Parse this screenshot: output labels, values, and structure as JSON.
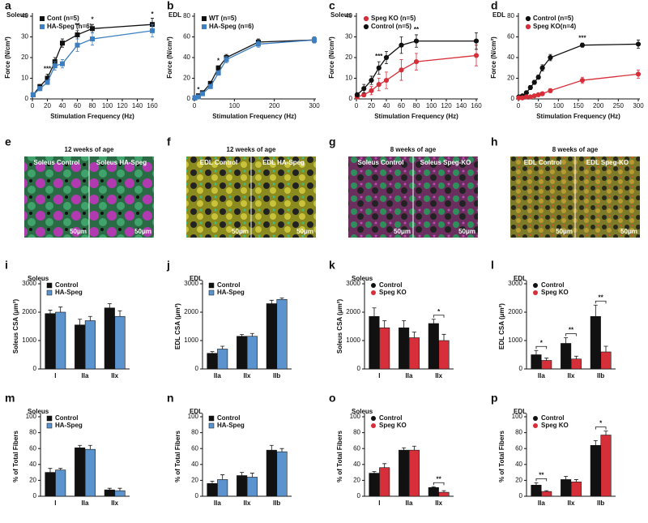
{
  "chart_data": [
    {
      "type": "line",
      "panel": "a",
      "subtitle": "Soleus",
      "x": [
        1,
        10,
        20,
        30,
        40,
        60,
        80,
        160
      ],
      "xlim": [
        0,
        160
      ],
      "xticks": [
        0,
        20,
        40,
        60,
        80,
        100,
        120,
        140,
        160
      ],
      "ylim": [
        0,
        40
      ],
      "yticks": [
        0,
        10,
        20,
        30,
        40
      ],
      "xlabel": "Stimulation Frequency (Hz)",
      "ylabel": "Force (N/cm²)",
      "series": [
        {
          "name": "Cont (n=5)",
          "color": "#111111",
          "marker": "square",
          "values": [
            2,
            6,
            10,
            18,
            27,
            31,
            34,
            36
          ],
          "errors": [
            1,
            1,
            2,
            2,
            2,
            2,
            2,
            3
          ]
        },
        {
          "name": "HA-Speg (n=6)",
          "color": "#3d7fc1",
          "marker": "square",
          "values": [
            2,
            5,
            8,
            16,
            17,
            26,
            29,
            33
          ],
          "errors": [
            1,
            1,
            1,
            2,
            2,
            3,
            3,
            3
          ]
        }
      ],
      "annotations": [
        {
          "text": "***",
          "x": 20
        },
        {
          "text": "**",
          "x": 60
        },
        {
          "text": "*",
          "x": 80
        },
        {
          "text": "*",
          "x": 160
        }
      ]
    },
    {
      "type": "line",
      "panel": "b",
      "subtitle": "EDL",
      "x": [
        1,
        10,
        20,
        40,
        60,
        80,
        160,
        300
      ],
      "xlim": [
        0,
        300
      ],
      "xticks": [
        0,
        100,
        200,
        300
      ],
      "ylim": [
        0,
        80
      ],
      "yticks": [
        0,
        20,
        40,
        60,
        80
      ],
      "xlabel": "Stimulation Frequency (Hz)",
      "ylabel": "Force (N/cm²)",
      "series": [
        {
          "name": "WT (n=5)",
          "color": "#111111",
          "marker": "square",
          "values": [
            1,
            3,
            6,
            15,
            30,
            40,
            55,
            57
          ],
          "errors": [
            1,
            1,
            1,
            2,
            2,
            3,
            3,
            3
          ]
        },
        {
          "name": "HA-Speg (n=6)",
          "color": "#3d7fc1",
          "marker": "square",
          "values": [
            1,
            2,
            5,
            12,
            25,
            38,
            53,
            57
          ],
          "errors": [
            1,
            1,
            1,
            2,
            2,
            3,
            3,
            3
          ]
        }
      ],
      "annotations": [
        {
          "text": "*",
          "x": 10
        },
        {
          "text": "*",
          "x": 60
        }
      ]
    },
    {
      "type": "line",
      "panel": "c",
      "subtitle": "Soleus",
      "x": [
        1,
        10,
        20,
        30,
        40,
        60,
        80,
        160
      ],
      "xlim": [
        0,
        160
      ],
      "xticks": [
        0,
        20,
        40,
        60,
        80,
        100,
        120,
        140,
        160
      ],
      "ylim": [
        0,
        40
      ],
      "yticks": [
        0,
        10,
        20,
        30,
        40
      ],
      "xlabel": "Stimulation Frequency (Hz)",
      "ylabel": "Force (N/cm²)",
      "series": [
        {
          "name": "Speg KO (n=5)",
          "color": "#d62f3a",
          "marker": "circle",
          "values": [
            1,
            2,
            4,
            7,
            9,
            14,
            18,
            21
          ],
          "errors": [
            1,
            1,
            2,
            3,
            4,
            5,
            4,
            5
          ]
        },
        {
          "name": "Control (n=5)",
          "color": "#111111",
          "marker": "circle",
          "values": [
            2,
            5,
            9,
            15,
            20,
            26,
            28,
            28
          ],
          "errors": [
            1,
            2,
            2,
            3,
            3,
            4,
            3,
            4
          ]
        }
      ],
      "annotations": [
        {
          "text": "***",
          "x": 30
        },
        {
          "text": "**",
          "x": 80
        }
      ]
    },
    {
      "type": "line",
      "panel": "d",
      "subtitle": "EDL",
      "x": [
        1,
        10,
        20,
        30,
        40,
        50,
        60,
        80,
        160,
        300
      ],
      "xlim": [
        0,
        300
      ],
      "xticks": [
        0,
        50,
        100,
        150,
        200,
        250,
        300
      ],
      "ylim": [
        0,
        80
      ],
      "yticks": [
        0,
        20,
        40,
        60,
        80
      ],
      "xlabel": "Stimulation Frequency (Hz)",
      "ylabel": "Force (N/cm²)",
      "series": [
        {
          "name": "Control (n=5)",
          "color": "#111111",
          "marker": "circle",
          "values": [
            2,
            3,
            6,
            11,
            16,
            21,
            30,
            40,
            52,
            53
          ],
          "errors": [
            1,
            1,
            1,
            2,
            2,
            2,
            3,
            3,
            2,
            4
          ]
        },
        {
          "name": "Speg KO(n=4)",
          "color": "#d62f3a",
          "marker": "circle",
          "values": [
            1,
            1,
            2,
            2,
            3,
            4,
            5,
            8,
            18,
            24
          ],
          "errors": [
            1,
            1,
            1,
            1,
            1,
            1,
            1,
            2,
            3,
            4
          ]
        }
      ],
      "annotations": [
        {
          "text": "***",
          "x": 160
        }
      ]
    },
    {
      "type": "bar",
      "panel": "i",
      "subtitle": "Soleus",
      "categories": [
        "I",
        "IIa",
        "IIx"
      ],
      "ylim": [
        0,
        3000
      ],
      "yticks": [
        0,
        1000,
        2000,
        3000
      ],
      "ylabel": "Soleus CSA (μm²)",
      "series": [
        {
          "name": "Control",
          "color": "#111111",
          "marker": "square",
          "values": [
            1950,
            1550,
            2150
          ],
          "errors": [
            120,
            200,
            150
          ]
        },
        {
          "name": "HA-Speg",
          "color": "#5b93cf",
          "marker": "square",
          "values": [
            2000,
            1700,
            1850
          ],
          "errors": [
            180,
            150,
            200
          ]
        }
      ],
      "annotations": []
    },
    {
      "type": "bar",
      "panel": "j",
      "subtitle": "EDL",
      "categories": [
        "IIa",
        "IIx",
        "IIb"
      ],
      "ylim": [
        0,
        3000
      ],
      "yticks": [
        0,
        1000,
        2000,
        3000
      ],
      "ylabel": "EDL CSA (μm²)",
      "series": [
        {
          "name": "Control",
          "color": "#111111",
          "marker": "square",
          "values": [
            550,
            1150,
            2300
          ],
          "errors": [
            60,
            60,
            120
          ]
        },
        {
          "name": "HA-Speg",
          "color": "#5b93cf",
          "marker": "square",
          "values": [
            700,
            1150,
            2450
          ],
          "errors": [
            100,
            100,
            50
          ]
        }
      ],
      "annotations": []
    },
    {
      "type": "bar",
      "panel": "k",
      "subtitle": "Soleus",
      "categories": [
        "I",
        "IIa",
        "IIx"
      ],
      "ylim": [
        0,
        3000
      ],
      "yticks": [
        0,
        1000,
        2000,
        3000
      ],
      "ylabel": "Soleus CSA (μm²)",
      "series": [
        {
          "name": "Control",
          "color": "#111111",
          "marker": "circle",
          "values": [
            1850,
            1450,
            1600
          ],
          "errors": [
            300,
            250,
            150
          ]
        },
        {
          "name": "Speg KO",
          "color": "#d62f3a",
          "marker": "circle",
          "values": [
            1450,
            1100,
            1000
          ],
          "errors": [
            250,
            200,
            220
          ]
        }
      ],
      "annotations": [
        {
          "text": "*",
          "category": "IIx"
        }
      ]
    },
    {
      "type": "bar",
      "panel": "l",
      "subtitle": "EDL",
      "categories": [
        "IIa",
        "IIx",
        "IIb"
      ],
      "ylim": [
        0,
        3000
      ],
      "yticks": [
        0,
        1000,
        2000,
        3000
      ],
      "ylabel": "EDL CSA (μm²)",
      "series": [
        {
          "name": "Control",
          "color": "#111111",
          "marker": "circle",
          "values": [
            500,
            900,
            1850
          ],
          "errors": [
            150,
            200,
            400
          ]
        },
        {
          "name": "Speg KO",
          "color": "#d62f3a",
          "marker": "circle",
          "values": [
            300,
            350,
            600
          ],
          "errors": [
            80,
            100,
            200
          ]
        }
      ],
      "annotations": [
        {
          "text": "*",
          "category": "IIa"
        },
        {
          "text": "**",
          "category": "IIx"
        },
        {
          "text": "**",
          "category": "IIb"
        }
      ]
    },
    {
      "type": "bar",
      "panel": "m",
      "subtitle": "Soleus",
      "categories": [
        "I",
        "IIa",
        "IIx"
      ],
      "ylim": [
        0,
        100
      ],
      "yticks": [
        0,
        20,
        40,
        60,
        80,
        100
      ],
      "ylabel": "% of Total Fibers",
      "series": [
        {
          "name": "Control",
          "color": "#111111",
          "marker": "square",
          "values": [
            30,
            61,
            8
          ],
          "errors": [
            5,
            3,
            2
          ]
        },
        {
          "name": "HA-Speg",
          "color": "#5b93cf",
          "marker": "square",
          "values": [
            33,
            59,
            7
          ],
          "errors": [
            2,
            5,
            3
          ]
        }
      ],
      "annotations": []
    },
    {
      "type": "bar",
      "panel": "n",
      "subtitle": "EDL",
      "categories": [
        "IIa",
        "IIx",
        "IIb"
      ],
      "ylim": [
        0,
        100
      ],
      "yticks": [
        0,
        20,
        40,
        60,
        80,
        100
      ],
      "ylabel": "% of Total Fibers",
      "series": [
        {
          "name": "Control",
          "color": "#111111",
          "marker": "square",
          "values": [
            16,
            26,
            58
          ],
          "errors": [
            3,
            4,
            6
          ]
        },
        {
          "name": "HA-Speg",
          "color": "#5b93cf",
          "marker": "square",
          "values": [
            21,
            24,
            56
          ],
          "errors": [
            6,
            5,
            4
          ]
        }
      ],
      "annotations": []
    },
    {
      "type": "bar",
      "panel": "o",
      "subtitle": "Soleus",
      "categories": [
        "I",
        "IIa",
        "IIx"
      ],
      "ylim": [
        0,
        100
      ],
      "yticks": [
        0,
        20,
        40,
        60,
        80,
        100
      ],
      "ylabel": "% of Total Fibers",
      "series": [
        {
          "name": "Control",
          "color": "#111111",
          "marker": "circle",
          "values": [
            29,
            58,
            11
          ],
          "errors": [
            2,
            3,
            1
          ]
        },
        {
          "name": "Speg KO",
          "color": "#d62f3a",
          "marker": "circle",
          "values": [
            36,
            58,
            5
          ],
          "errors": [
            5,
            5,
            2
          ]
        }
      ],
      "annotations": [
        {
          "text": "**",
          "category": "IIx"
        }
      ]
    },
    {
      "type": "bar",
      "panel": "p",
      "subtitle": "EDL",
      "categories": [
        "IIa",
        "IIx",
        "IIb"
      ],
      "ylim": [
        0,
        100
      ],
      "yticks": [
        0,
        20,
        40,
        60,
        80,
        100
      ],
      "ylabel": "% of Total Fibers",
      "series": [
        {
          "name": "Control",
          "color": "#111111",
          "marker": "circle",
          "values": [
            14,
            21,
            64
          ],
          "errors": [
            3,
            4,
            6
          ]
        },
        {
          "name": "Speg KO",
          "color": "#d62f3a",
          "marker": "circle",
          "values": [
            6,
            18,
            77
          ],
          "errors": [
            1,
            3,
            5
          ]
        }
      ],
      "annotations": [
        {
          "text": "**",
          "category": "IIa"
        },
        {
          "text": "*",
          "category": "IIb"
        }
      ]
    }
  ],
  "images": [
    {
      "panel": "e",
      "title": "12 weeks of age",
      "labels": [
        "Soleus Control",
        "Soleus HA-Speg"
      ],
      "scales": [
        "50μm",
        "50μm"
      ]
    },
    {
      "panel": "f",
      "title": "12 weeks of age",
      "labels": [
        "EDL Control",
        "EDL HA-Speg"
      ],
      "scales": [
        "50μm",
        "50μm"
      ]
    },
    {
      "panel": "g",
      "title": "8 weeks of age",
      "labels": [
        "Soleus Control",
        "Soleus Speg-KO"
      ],
      "scales": [
        "50μm",
        "50μm"
      ]
    },
    {
      "panel": "h",
      "title": "8 weeks of age",
      "labels": [
        "EDL Control",
        "EDL Speg-KO"
      ],
      "scales": [
        "50μm",
        "50μm"
      ]
    }
  ]
}
